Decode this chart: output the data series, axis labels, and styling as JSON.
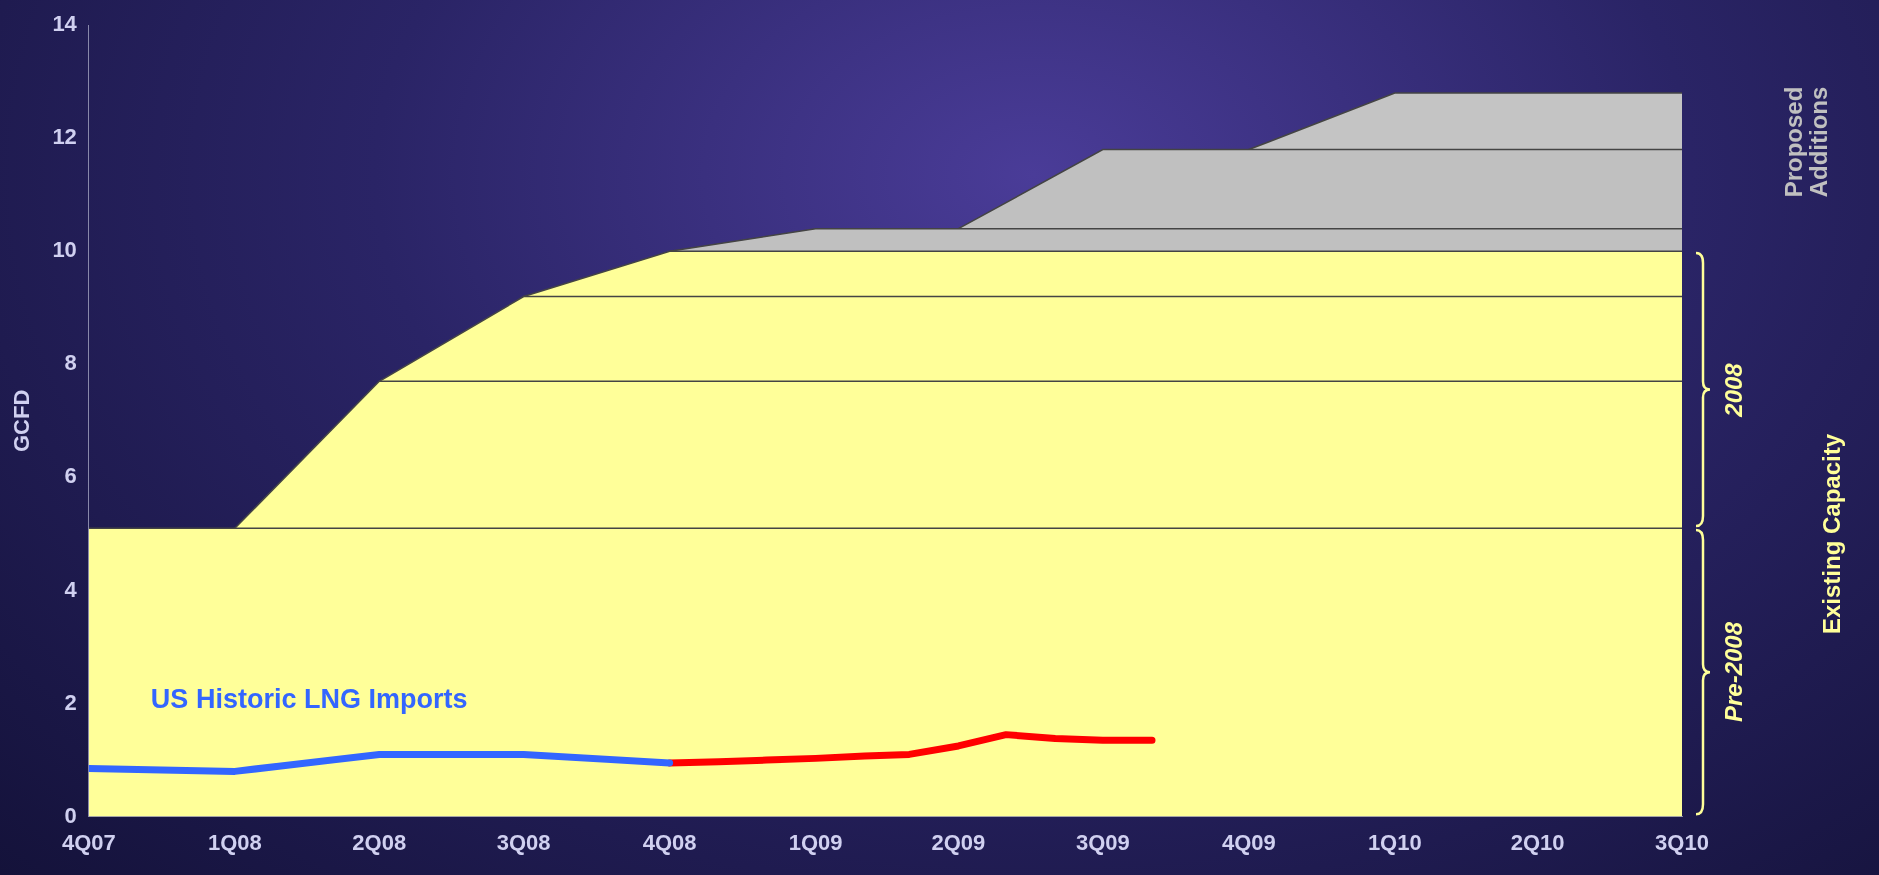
{
  "chart_data": {
    "type": "area",
    "stacked": true,
    "ylabel": "GCFD",
    "x": [
      "2007-10",
      "2008-01",
      "2008-04",
      "2008-07",
      "2008-10",
      "2009-01",
      "2009-04",
      "2009-07",
      "2009-10",
      "2010-01",
      "2010-04",
      "2010-07"
    ],
    "xlim": [
      "2007-10",
      "2010-07"
    ],
    "xticks": [
      {
        "value": "2007-10",
        "label": "4Q07"
      },
      {
        "value": "2008-01",
        "label": "1Q08"
      },
      {
        "value": "2008-04",
        "label": "2Q08"
      },
      {
        "value": "2008-07",
        "label": "3Q08"
      },
      {
        "value": "2008-10",
        "label": "4Q08"
      },
      {
        "value": "2009-01",
        "label": "1Q09"
      },
      {
        "value": "2009-04",
        "label": "2Q09"
      },
      {
        "value": "2009-07",
        "label": "3Q09"
      },
      {
        "value": "2009-10",
        "label": "4Q09"
      },
      {
        "value": "2010-01",
        "label": "1Q10"
      },
      {
        "value": "2010-04",
        "label": "2Q10"
      },
      {
        "value": "2010-07",
        "label": "3Q10"
      }
    ],
    "ylim": [
      0,
      14
    ],
    "yticks": [
      0,
      2,
      4,
      6,
      8,
      10,
      12,
      14
    ],
    "grid": false,
    "legend": false,
    "series": [
      {
        "color": "#ffff99",
        "values": [
          5.1,
          5.1,
          5.1,
          5.1,
          5.1,
          5.1,
          5.1,
          5.1,
          5.1,
          5.1,
          5.1,
          5.1
        ]
      },
      {
        "color": "#ffff99",
        "values": [
          null,
          0,
          2.6,
          2.6,
          2.6,
          2.6,
          2.6,
          2.6,
          2.6,
          2.6,
          2.6,
          2.6
        ]
      },
      {
        "color": "#ffff99",
        "values": [
          null,
          null,
          0,
          1.5,
          1.5,
          1.5,
          1.5,
          1.5,
          1.5,
          1.5,
          1.5,
          1.5
        ]
      },
      {
        "color": "#ffff99",
        "values": [
          null,
          null,
          null,
          0,
          0.8,
          0.8,
          0.8,
          0.8,
          0.8,
          0.8,
          0.8,
          0.8
        ]
      },
      {
        "color": "#c0c0c0",
        "values": [
          null,
          null,
          null,
          null,
          0,
          0.4,
          0.4,
          0.4,
          0.4,
          0.4,
          0.4,
          0.4
        ]
      },
      {
        "color": "#c0c0c0",
        "values": [
          null,
          null,
          null,
          null,
          null,
          null,
          0,
          1.4,
          1.4,
          1.4,
          1.4,
          1.4
        ]
      },
      {
        "color": "#c4c4c4",
        "values": [
          null,
          null,
          null,
          null,
          null,
          null,
          null,
          null,
          0,
          1,
          1,
          1
        ]
      },
      {
        "type": "line",
        "name": "US Historic LNG Imports",
        "color": "#3366ff",
        "x": [
          "2007-10",
          "2008-01",
          "2008-04",
          "2008-07",
          "2008-10"
        ],
        "values": [
          0.85,
          0.8,
          1.1,
          1.1,
          0.95
        ]
      },
      {
        "type": "line",
        "color": "#ff0000",
        "x": [
          "2008-10",
          "2008-11",
          "2008-12",
          "2009-01",
          "2009-02",
          "2009-03",
          "2009-04",
          "2009-05",
          "2009-06",
          "2009-07",
          "2009-08"
        ],
        "values": [
          0.95,
          0.97,
          1.0,
          1.03,
          1.07,
          1.1,
          1.25,
          1.45,
          1.38,
          1.35,
          1.35
        ]
      }
    ],
    "annotations": [
      "Proposed Additions",
      "Existing Capacity",
      "2008",
      "Pre-2008"
    ]
  }
}
